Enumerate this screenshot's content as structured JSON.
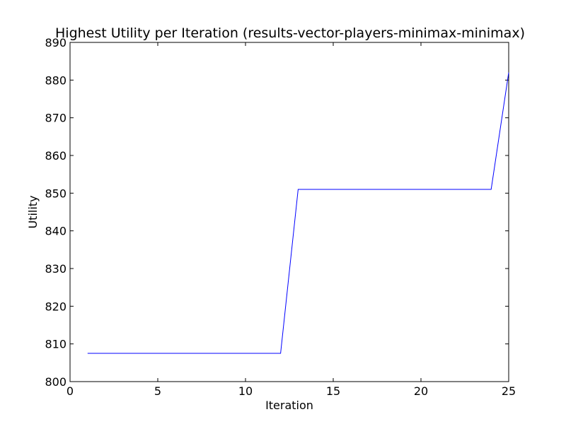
{
  "chart_data": {
    "type": "line",
    "title": "Highest Utility per Iteration (results-vector-players-minimax-minimax)",
    "xlabel": "Iteration",
    "ylabel": "Utility",
    "xlim": [
      0,
      25
    ],
    "ylim": [
      800,
      890
    ],
    "xticks": [
      0,
      5,
      10,
      15,
      20,
      25
    ],
    "yticks": [
      800,
      810,
      820,
      830,
      840,
      850,
      860,
      870,
      880,
      890
    ],
    "grid": false,
    "legend": "none",
    "series": [
      {
        "color": "#0000ff",
        "x": [
          1,
          2,
          3,
          4,
          5,
          6,
          7,
          8,
          9,
          10,
          11,
          12,
          13,
          14,
          15,
          16,
          17,
          18,
          19,
          20,
          21,
          22,
          23,
          24,
          25
        ],
        "y": [
          807.5,
          807.5,
          807.5,
          807.5,
          807.5,
          807.5,
          807.5,
          807.5,
          807.5,
          807.5,
          807.5,
          807.5,
          851,
          851,
          851,
          851,
          851,
          851,
          851,
          851,
          851,
          851,
          851,
          851,
          882
        ]
      }
    ]
  }
}
